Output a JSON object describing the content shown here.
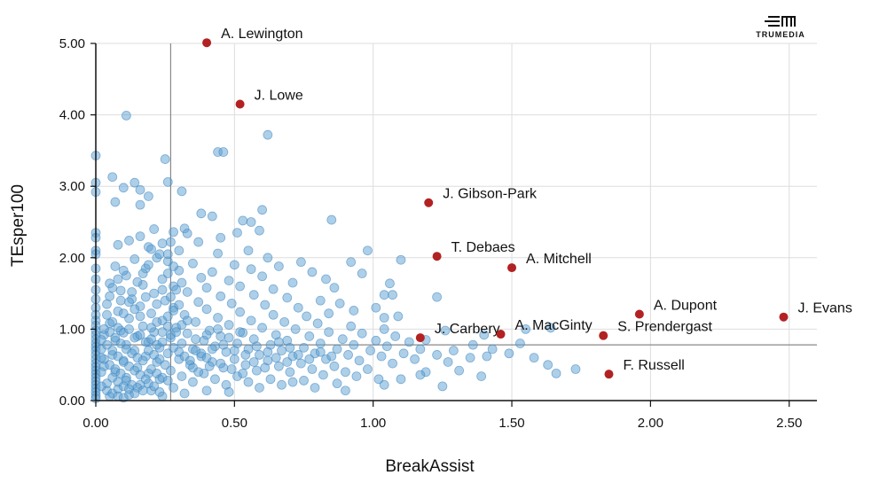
{
  "brand": {
    "name": "TRUMEDIA",
    "icon": "trumedia-logo-icon"
  },
  "chart_data": {
    "type": "scatter",
    "title": "",
    "xlabel": "BreakAssist",
    "ylabel": "TEsper100",
    "xlim": [
      0,
      2.6
    ],
    "ylim": [
      0,
      5.0
    ],
    "x_ticks": [
      "0.00",
      "0.50",
      "1.00",
      "1.50",
      "2.00",
      "2.50"
    ],
    "y_ticks": [
      "0.00",
      "1.00",
      "2.00",
      "3.00",
      "4.00",
      "5.00"
    ],
    "grid": true,
    "reference_lines": {
      "x": 0.27,
      "y": 0.78
    },
    "colors": {
      "background_points": "#5b9fd1",
      "highlight_points": "#b22222",
      "grid": "#dddddd",
      "reference": "#888888"
    },
    "highlighted": [
      {
        "name": "A. Lewington",
        "x": 0.4,
        "y": 5.01
      },
      {
        "name": "J. Lowe",
        "x": 0.52,
        "y": 4.15
      },
      {
        "name": "J. Gibson-Park",
        "x": 1.2,
        "y": 2.77
      },
      {
        "name": "T. Debaes",
        "x": 1.23,
        "y": 2.02
      },
      {
        "name": "A. Mitchell",
        "x": 1.5,
        "y": 1.86
      },
      {
        "name": "A. Dupont",
        "x": 1.96,
        "y": 1.21
      },
      {
        "name": "J. Evans",
        "x": 2.48,
        "y": 1.17
      },
      {
        "name": "J. Carbery",
        "x": 1.17,
        "y": 0.88
      },
      {
        "name": "A. MacGinty",
        "x": 1.46,
        "y": 0.93
      },
      {
        "name": "S. Prendergast",
        "x": 1.83,
        "y": 0.91
      },
      {
        "name": "F. Russell",
        "x": 1.85,
        "y": 0.37
      }
    ],
    "others": [
      [
        0.0,
        3.43
      ],
      [
        0.0,
        3.05
      ],
      [
        0.0,
        2.92
      ],
      [
        0.0,
        2.35
      ],
      [
        0.0,
        2.28
      ],
      [
        0.0,
        2.1
      ],
      [
        0.0,
        2.05
      ],
      [
        0.0,
        1.85
      ],
      [
        0.0,
        1.7
      ],
      [
        0.0,
        1.55
      ],
      [
        0.0,
        1.42
      ],
      [
        0.0,
        1.3
      ],
      [
        0.0,
        1.2
      ],
      [
        0.0,
        1.12
      ],
      [
        0.0,
        1.05
      ],
      [
        0.0,
        0.98
      ],
      [
        0.0,
        0.92
      ],
      [
        0.0,
        0.86
      ],
      [
        0.0,
        0.8
      ],
      [
        0.0,
        0.75
      ],
      [
        0.0,
        0.7
      ],
      [
        0.0,
        0.64
      ],
      [
        0.0,
        0.58
      ],
      [
        0.0,
        0.52
      ],
      [
        0.0,
        0.47
      ],
      [
        0.0,
        0.42
      ],
      [
        0.0,
        0.37
      ],
      [
        0.0,
        0.32
      ],
      [
        0.0,
        0.27
      ],
      [
        0.0,
        0.22
      ],
      [
        0.0,
        0.17
      ],
      [
        0.0,
        0.12
      ],
      [
        0.0,
        0.07
      ],
      [
        0.0,
        0.03
      ],
      [
        0.11,
        3.99
      ],
      [
        0.62,
        3.72
      ],
      [
        0.44,
        3.48
      ],
      [
        0.46,
        3.48
      ],
      [
        0.25,
        3.38
      ],
      [
        0.06,
        3.13
      ],
      [
        0.26,
        3.06
      ],
      [
        0.14,
        3.05
      ],
      [
        0.1,
        2.98
      ],
      [
        0.16,
        2.95
      ],
      [
        0.31,
        2.93
      ],
      [
        0.19,
        2.86
      ],
      [
        0.07,
        2.78
      ],
      [
        0.16,
        2.74
      ],
      [
        0.38,
        2.62
      ],
      [
        0.42,
        2.58
      ],
      [
        0.53,
        2.52
      ],
      [
        0.6,
        2.67
      ],
      [
        0.56,
        2.5
      ],
      [
        0.85,
        2.53
      ],
      [
        0.21,
        2.4
      ],
      [
        0.28,
        2.36
      ],
      [
        0.32,
        2.41
      ],
      [
        0.33,
        2.34
      ],
      [
        0.45,
        2.28
      ],
      [
        0.51,
        2.35
      ],
      [
        0.59,
        2.38
      ],
      [
        0.16,
        2.3
      ],
      [
        0.12,
        2.24
      ],
      [
        0.24,
        2.2
      ],
      [
        0.37,
        2.22
      ],
      [
        0.08,
        2.18
      ],
      [
        0.19,
        2.15
      ],
      [
        0.3,
        2.1
      ],
      [
        0.55,
        2.1
      ],
      [
        0.44,
        2.06
      ],
      [
        0.98,
        2.1
      ],
      [
        0.62,
        2.0
      ],
      [
        0.22,
        2.0
      ],
      [
        0.14,
        1.98
      ],
      [
        0.26,
        1.95
      ],
      [
        0.35,
        1.92
      ],
      [
        0.5,
        1.9
      ],
      [
        0.66,
        1.88
      ],
      [
        0.74,
        1.94
      ],
      [
        0.92,
        1.94
      ],
      [
        1.1,
        1.97
      ],
      [
        0.07,
        1.88
      ],
      [
        0.18,
        1.85
      ],
      [
        0.3,
        1.82
      ],
      [
        0.42,
        1.8
      ],
      [
        0.56,
        1.84
      ],
      [
        0.6,
        1.74
      ],
      [
        0.78,
        1.8
      ],
      [
        0.96,
        1.78
      ],
      [
        0.11,
        1.75
      ],
      [
        0.24,
        1.7
      ],
      [
        0.38,
        1.72
      ],
      [
        0.48,
        1.68
      ],
      [
        0.71,
        1.65
      ],
      [
        0.83,
        1.7
      ],
      [
        1.06,
        1.64
      ],
      [
        0.05,
        1.64
      ],
      [
        0.17,
        1.62
      ],
      [
        0.28,
        1.6
      ],
      [
        0.4,
        1.58
      ],
      [
        0.52,
        1.6
      ],
      [
        0.64,
        1.56
      ],
      [
        0.86,
        1.58
      ],
      [
        1.04,
        1.48
      ],
      [
        1.07,
        1.48
      ],
      [
        0.09,
        1.54
      ],
      [
        0.21,
        1.5
      ],
      [
        0.33,
        1.52
      ],
      [
        0.45,
        1.46
      ],
      [
        0.57,
        1.48
      ],
      [
        0.69,
        1.44
      ],
      [
        0.81,
        1.4
      ],
      [
        0.88,
        1.36
      ],
      [
        1.23,
        1.45
      ],
      [
        0.13,
        1.42
      ],
      [
        0.25,
        1.4
      ],
      [
        0.37,
        1.38
      ],
      [
        0.49,
        1.36
      ],
      [
        0.61,
        1.34
      ],
      [
        0.73,
        1.3
      ],
      [
        0.93,
        1.26
      ],
      [
        1.01,
        1.3
      ],
      [
        0.04,
        1.35
      ],
      [
        0.16,
        1.32
      ],
      [
        0.28,
        1.3
      ],
      [
        0.4,
        1.28
      ],
      [
        0.52,
        1.24
      ],
      [
        0.64,
        1.2
      ],
      [
        0.76,
        1.18
      ],
      [
        0.84,
        1.22
      ],
      [
        1.04,
        1.16
      ],
      [
        0.08,
        1.25
      ],
      [
        0.2,
        1.22
      ],
      [
        0.32,
        1.2
      ],
      [
        0.44,
        1.16
      ],
      [
        0.56,
        1.12
      ],
      [
        0.68,
        1.1
      ],
      [
        0.8,
        1.08
      ],
      [
        0.92,
        1.04
      ],
      [
        1.04,
        1.0
      ],
      [
        1.09,
        1.18
      ],
      [
        0.12,
        1.15
      ],
      [
        0.24,
        1.12
      ],
      [
        0.36,
        1.1
      ],
      [
        0.48,
        1.06
      ],
      [
        0.6,
        1.02
      ],
      [
        0.72,
        1.0
      ],
      [
        0.84,
        0.96
      ],
      [
        0.96,
        0.94
      ],
      [
        1.08,
        0.9
      ],
      [
        1.19,
        0.85
      ],
      [
        1.26,
        0.98
      ],
      [
        0.05,
        1.08
      ],
      [
        0.17,
        1.04
      ],
      [
        0.29,
        1.02
      ],
      [
        0.41,
        0.98
      ],
      [
        0.53,
        0.95
      ],
      [
        0.65,
        0.92
      ],
      [
        0.77,
        0.9
      ],
      [
        0.89,
        0.86
      ],
      [
        1.01,
        0.84
      ],
      [
        1.13,
        0.82
      ],
      [
        1.36,
        0.78
      ],
      [
        1.4,
        0.92
      ],
      [
        1.55,
        1.0
      ],
      [
        1.64,
        1.02
      ],
      [
        0.09,
        0.98
      ],
      [
        0.21,
        0.96
      ],
      [
        0.33,
        0.94
      ],
      [
        0.45,
        0.9
      ],
      [
        0.57,
        0.86
      ],
      [
        0.69,
        0.84
      ],
      [
        0.81,
        0.8
      ],
      [
        0.93,
        0.78
      ],
      [
        1.05,
        0.76
      ],
      [
        1.17,
        0.72
      ],
      [
        1.29,
        0.7
      ],
      [
        1.43,
        0.72
      ],
      [
        1.49,
        0.66
      ],
      [
        1.53,
        0.8
      ],
      [
        0.03,
        0.92
      ],
      [
        0.15,
        0.9
      ],
      [
        0.27,
        0.88
      ],
      [
        0.39,
        0.84
      ],
      [
        0.51,
        0.8
      ],
      [
        0.63,
        0.78
      ],
      [
        0.75,
        0.74
      ],
      [
        0.87,
        0.72
      ],
      [
        0.99,
        0.7
      ],
      [
        1.11,
        0.66
      ],
      [
        1.23,
        0.64
      ],
      [
        1.35,
        0.6
      ],
      [
        1.41,
        0.62
      ],
      [
        1.58,
        0.6
      ],
      [
        0.07,
        0.84
      ],
      [
        0.19,
        0.82
      ],
      [
        0.31,
        0.8
      ],
      [
        0.43,
        0.76
      ],
      [
        0.55,
        0.72
      ],
      [
        0.67,
        0.7
      ],
      [
        0.79,
        0.66
      ],
      [
        0.91,
        0.64
      ],
      [
        1.03,
        0.62
      ],
      [
        1.15,
        0.58
      ],
      [
        1.27,
        0.54
      ],
      [
        1.63,
        0.5
      ],
      [
        1.73,
        0.44
      ],
      [
        0.11,
        0.78
      ],
      [
        0.23,
        0.74
      ],
      [
        0.35,
        0.72
      ],
      [
        0.47,
        0.68
      ],
      [
        0.59,
        0.64
      ],
      [
        0.71,
        0.62
      ],
      [
        0.83,
        0.58
      ],
      [
        0.95,
        0.56
      ],
      [
        1.07,
        0.52
      ],
      [
        1.19,
        0.4
      ],
      [
        1.31,
        0.42
      ],
      [
        1.39,
        0.34
      ],
      [
        1.66,
        0.38
      ],
      [
        0.02,
        0.72
      ],
      [
        0.14,
        0.7
      ],
      [
        0.26,
        0.66
      ],
      [
        0.38,
        0.62
      ],
      [
        0.5,
        0.58
      ],
      [
        0.62,
        0.56
      ],
      [
        0.74,
        0.52
      ],
      [
        0.86,
        0.48
      ],
      [
        0.98,
        0.44
      ],
      [
        1.1,
        0.3
      ],
      [
        1.17,
        0.36
      ],
      [
        1.25,
        0.2
      ],
      [
        0.06,
        0.64
      ],
      [
        0.18,
        0.62
      ],
      [
        0.3,
        0.58
      ],
      [
        0.42,
        0.54
      ],
      [
        0.54,
        0.5
      ],
      [
        0.66,
        0.48
      ],
      [
        0.78,
        0.44
      ],
      [
        0.9,
        0.4
      ],
      [
        1.02,
        0.3
      ],
      [
        0.1,
        0.56
      ],
      [
        0.22,
        0.54
      ],
      [
        0.34,
        0.5
      ],
      [
        0.46,
        0.46
      ],
      [
        0.58,
        0.42
      ],
      [
        0.7,
        0.4
      ],
      [
        0.82,
        0.36
      ],
      [
        0.94,
        0.34
      ],
      [
        1.04,
        0.22
      ],
      [
        0.03,
        0.48
      ],
      [
        0.15,
        0.46
      ],
      [
        0.27,
        0.42
      ],
      [
        0.39,
        0.38
      ],
      [
        0.51,
        0.34
      ],
      [
        0.63,
        0.3
      ],
      [
        0.75,
        0.28
      ],
      [
        0.87,
        0.24
      ],
      [
        0.07,
        0.4
      ],
      [
        0.19,
        0.38
      ],
      [
        0.31,
        0.34
      ],
      [
        0.43,
        0.3
      ],
      [
        0.55,
        0.26
      ],
      [
        0.67,
        0.22
      ],
      [
        0.79,
        0.18
      ],
      [
        0.9,
        0.14
      ],
      [
        0.11,
        0.32
      ],
      [
        0.23,
        0.3
      ],
      [
        0.35,
        0.26
      ],
      [
        0.47,
        0.22
      ],
      [
        0.59,
        0.18
      ],
      [
        0.71,
        0.26
      ],
      [
        0.04,
        0.24
      ],
      [
        0.16,
        0.22
      ],
      [
        0.28,
        0.18
      ],
      [
        0.4,
        0.14
      ],
      [
        0.48,
        0.12
      ],
      [
        0.08,
        0.16
      ],
      [
        0.2,
        0.14
      ],
      [
        0.32,
        0.1
      ],
      [
        0.12,
        0.08
      ],
      [
        0.24,
        0.06
      ],
      [
        0.05,
        0.06
      ],
      [
        0.04,
        1.2
      ],
      [
        0.06,
        1.1
      ],
      [
        0.08,
        1.02
      ],
      [
        0.1,
        0.95
      ],
      [
        0.12,
        1.0
      ],
      [
        0.14,
        0.88
      ],
      [
        0.16,
        0.92
      ],
      [
        0.18,
        0.82
      ],
      [
        0.2,
        0.86
      ],
      [
        0.22,
        0.78
      ],
      [
        0.24,
        0.82
      ],
      [
        0.05,
        0.96
      ],
      [
        0.07,
        0.88
      ],
      [
        0.09,
        0.8
      ],
      [
        0.11,
        0.72
      ],
      [
        0.13,
        0.66
      ],
      [
        0.15,
        0.6
      ],
      [
        0.17,
        0.56
      ],
      [
        0.19,
        0.7
      ],
      [
        0.21,
        0.64
      ],
      [
        0.23,
        0.58
      ],
      [
        0.25,
        0.5
      ],
      [
        0.04,
        0.78
      ],
      [
        0.06,
        0.7
      ],
      [
        0.08,
        0.62
      ],
      [
        0.1,
        0.54
      ],
      [
        0.12,
        0.48
      ],
      [
        0.14,
        0.42
      ],
      [
        0.16,
        0.36
      ],
      [
        0.18,
        0.3
      ],
      [
        0.2,
        0.44
      ],
      [
        0.22,
        0.38
      ],
      [
        0.24,
        0.32
      ],
      [
        0.26,
        0.28
      ],
      [
        0.03,
        0.58
      ],
      [
        0.05,
        0.5
      ],
      [
        0.07,
        0.44
      ],
      [
        0.09,
        0.38
      ],
      [
        0.11,
        0.28
      ],
      [
        0.13,
        0.22
      ],
      [
        0.15,
        0.18
      ],
      [
        0.17,
        0.14
      ],
      [
        0.19,
        0.24
      ],
      [
        0.21,
        0.2
      ],
      [
        0.23,
        0.12
      ],
      [
        0.06,
        0.32
      ],
      [
        0.08,
        0.26
      ],
      [
        0.1,
        0.2
      ],
      [
        0.12,
        0.16
      ],
      [
        0.14,
        0.1
      ],
      [
        0.04,
        0.14
      ],
      [
        0.06,
        0.1
      ],
      [
        0.08,
        0.06
      ],
      [
        0.1,
        0.04
      ],
      [
        0.02,
        0.2
      ],
      [
        0.02,
        0.4
      ],
      [
        0.02,
        0.6
      ],
      [
        0.02,
        0.85
      ],
      [
        0.03,
        1.0
      ],
      [
        0.28,
        0.74
      ],
      [
        0.3,
        0.68
      ],
      [
        0.32,
        0.62
      ],
      [
        0.34,
        0.56
      ],
      [
        0.36,
        0.7
      ],
      [
        0.38,
        0.66
      ],
      [
        0.4,
        0.6
      ],
      [
        0.42,
        0.72
      ],
      [
        0.27,
        0.92
      ],
      [
        0.29,
        0.96
      ],
      [
        0.31,
        1.06
      ],
      [
        0.33,
        1.12
      ],
      [
        0.26,
        1.18
      ],
      [
        0.28,
        1.26
      ],
      [
        0.3,
        1.34
      ],
      [
        0.27,
        1.45
      ],
      [
        0.29,
        1.55
      ],
      [
        0.31,
        1.65
      ],
      [
        0.26,
        1.78
      ],
      [
        0.28,
        1.88
      ],
      [
        0.26,
        2.05
      ],
      [
        0.27,
        2.22
      ],
      [
        0.06,
        1.58
      ],
      [
        0.08,
        1.7
      ],
      [
        0.1,
        1.82
      ],
      [
        0.05,
        1.46
      ],
      [
        0.09,
        1.4
      ],
      [
        0.13,
        1.52
      ],
      [
        0.15,
        1.66
      ],
      [
        0.17,
        1.78
      ],
      [
        0.19,
        1.9
      ],
      [
        0.23,
        2.05
      ],
      [
        0.2,
        2.12
      ],
      [
        0.18,
        1.45
      ],
      [
        0.22,
        1.35
      ],
      [
        0.24,
        1.55
      ],
      [
        0.14,
        1.28
      ],
      [
        0.16,
        1.18
      ],
      [
        0.12,
        1.38
      ],
      [
        0.1,
        1.22
      ],
      [
        0.2,
        1.02
      ],
      [
        0.22,
        1.1
      ],
      [
        0.24,
        0.96
      ],
      [
        0.26,
        1.04
      ],
      [
        0.36,
        0.86
      ],
      [
        0.4,
        0.92
      ],
      [
        0.44,
        1.0
      ],
      [
        0.48,
        0.88
      ],
      [
        0.52,
        0.96
      ],
      [
        0.46,
        0.78
      ],
      [
        0.5,
        0.7
      ],
      [
        0.54,
        0.64
      ],
      [
        0.58,
        0.76
      ],
      [
        0.62,
        0.68
      ],
      [
        0.66,
        0.82
      ],
      [
        0.7,
        0.74
      ],
      [
        0.35,
        0.46
      ],
      [
        0.37,
        0.4
      ],
      [
        0.41,
        0.48
      ],
      [
        0.45,
        0.52
      ],
      [
        0.49,
        0.44
      ],
      [
        0.53,
        0.38
      ],
      [
        0.57,
        0.54
      ],
      [
        0.61,
        0.46
      ],
      [
        0.65,
        0.6
      ],
      [
        0.69,
        0.54
      ],
      [
        0.73,
        0.64
      ],
      [
        0.77,
        0.58
      ],
      [
        0.81,
        0.68
      ],
      [
        0.85,
        0.62
      ]
    ]
  }
}
